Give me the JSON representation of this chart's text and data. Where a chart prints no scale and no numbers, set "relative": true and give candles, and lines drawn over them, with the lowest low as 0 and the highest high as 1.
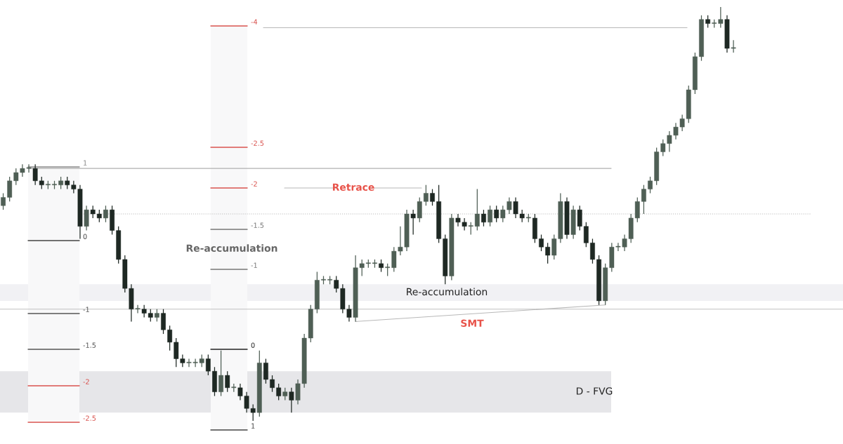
{
  "chart_data": {
    "type": "candlestick",
    "relative": true,
    "categories": [
      null,
      null,
      null,
      null,
      null,
      null,
      null,
      null,
      null,
      null,
      null,
      null,
      null,
      null,
      null,
      null,
      null,
      null,
      null,
      null,
      null,
      null,
      null,
      null,
      null,
      null,
      null,
      null,
      null,
      null,
      null,
      null,
      null,
      null,
      null,
      null,
      null,
      null,
      null,
      null,
      null,
      null,
      null,
      null,
      null,
      null,
      null,
      null,
      null,
      null,
      null,
      null,
      null,
      null,
      null,
      null,
      null,
      null,
      null,
      null,
      null,
      null,
      null,
      null,
      null,
      null,
      null,
      null,
      null,
      null,
      null,
      null,
      null,
      null,
      null,
      null,
      null,
      null,
      null,
      null,
      null,
      null,
      null,
      null,
      null,
      null,
      null,
      null,
      null,
      null,
      null,
      null,
      null,
      null,
      null,
      null,
      null,
      null,
      null,
      null,
      null,
      null,
      null,
      null,
      null,
      null,
      null,
      null,
      null,
      null,
      null,
      null,
      null,
      null,
      null
    ],
    "ohlc": [
      [
        0.52,
        0.55,
        0.51,
        0.54
      ],
      [
        0.54,
        0.59,
        0.53,
        0.58
      ],
      [
        0.58,
        0.61,
        0.57,
        0.6
      ],
      [
        0.6,
        0.62,
        0.59,
        0.61
      ],
      [
        0.61,
        0.62,
        0.6,
        0.61
      ],
      [
        0.61,
        0.62,
        0.57,
        0.58
      ],
      [
        0.58,
        0.59,
        0.56,
        0.57
      ],
      [
        0.57,
        0.58,
        0.56,
        0.57
      ],
      [
        0.57,
        0.58,
        0.56,
        0.57
      ],
      [
        0.57,
        0.59,
        0.56,
        0.58
      ],
      [
        0.58,
        0.59,
        0.56,
        0.57
      ],
      [
        0.57,
        0.58,
        0.55,
        0.56
      ],
      [
        0.56,
        0.57,
        0.44,
        0.47
      ],
      [
        0.47,
        0.52,
        0.46,
        0.51
      ],
      [
        0.51,
        0.52,
        0.49,
        0.5
      ],
      [
        0.5,
        0.51,
        0.48,
        0.49
      ],
      [
        0.49,
        0.52,
        0.48,
        0.51
      ],
      [
        0.51,
        0.52,
        0.45,
        0.46
      ],
      [
        0.46,
        0.47,
        0.38,
        0.39
      ],
      [
        0.39,
        0.4,
        0.31,
        0.32
      ],
      [
        0.32,
        0.33,
        0.24,
        0.27
      ],
      [
        0.27,
        0.28,
        0.26,
        0.27
      ],
      [
        0.27,
        0.28,
        0.25,
        0.26
      ],
      [
        0.26,
        0.27,
        0.24,
        0.25
      ],
      [
        0.25,
        0.27,
        0.24,
        0.26
      ],
      [
        0.26,
        0.27,
        0.21,
        0.22
      ],
      [
        0.22,
        0.23,
        0.17,
        0.19
      ],
      [
        0.19,
        0.2,
        0.13,
        0.15
      ],
      [
        0.15,
        0.16,
        0.13,
        0.14
      ],
      [
        0.14,
        0.15,
        0.13,
        0.14
      ],
      [
        0.14,
        0.15,
        0.13,
        0.14
      ],
      [
        0.14,
        0.16,
        0.13,
        0.15
      ],
      [
        0.15,
        0.16,
        0.11,
        0.12
      ],
      [
        0.12,
        0.13,
        0.06,
        0.07
      ],
      [
        0.07,
        0.17,
        0.06,
        0.11
      ],
      [
        0.11,
        0.12,
        0.07,
        0.08
      ],
      [
        0.08,
        0.09,
        0.07,
        0.08
      ],
      [
        0.08,
        0.09,
        0.05,
        0.06
      ],
      [
        0.06,
        0.07,
        0.02,
        0.03
      ],
      [
        0.03,
        0.04,
        0.0,
        0.02
      ],
      [
        0.02,
        0.17,
        0.01,
        0.14
      ],
      [
        0.14,
        0.15,
        0.09,
        0.1
      ],
      [
        0.1,
        0.11,
        0.07,
        0.08
      ],
      [
        0.08,
        0.09,
        0.05,
        0.06
      ],
      [
        0.06,
        0.08,
        0.05,
        0.07
      ],
      [
        0.07,
        0.08,
        0.02,
        0.05
      ],
      [
        0.05,
        0.1,
        0.04,
        0.09
      ],
      [
        0.09,
        0.21,
        0.08,
        0.2
      ],
      [
        0.2,
        0.28,
        0.19,
        0.27
      ],
      [
        0.27,
        0.36,
        0.26,
        0.34
      ],
      [
        0.34,
        0.35,
        0.33,
        0.34
      ],
      [
        0.34,
        0.35,
        0.33,
        0.34
      ],
      [
        0.34,
        0.35,
        0.31,
        0.32
      ],
      [
        0.32,
        0.33,
        0.26,
        0.27
      ],
      [
        0.27,
        0.28,
        0.24,
        0.25
      ],
      [
        0.25,
        0.4,
        0.24,
        0.37
      ],
      [
        0.37,
        0.39,
        0.35,
        0.38
      ],
      [
        0.38,
        0.39,
        0.37,
        0.38
      ],
      [
        0.38,
        0.39,
        0.37,
        0.38
      ],
      [
        0.38,
        0.39,
        0.36,
        0.37
      ],
      [
        0.37,
        0.38,
        0.35,
        0.37
      ],
      [
        0.37,
        0.42,
        0.36,
        0.41
      ],
      [
        0.41,
        0.47,
        0.4,
        0.42
      ],
      [
        0.42,
        0.51,
        0.41,
        0.5
      ],
      [
        0.5,
        0.51,
        0.45,
        0.49
      ],
      [
        0.49,
        0.54,
        0.48,
        0.53
      ],
      [
        0.53,
        0.57,
        0.52,
        0.55
      ],
      [
        0.55,
        0.56,
        0.52,
        0.53
      ],
      [
        0.53,
        0.57,
        0.43,
        0.44
      ],
      [
        0.44,
        0.45,
        0.33,
        0.35
      ],
      [
        0.35,
        0.5,
        0.34,
        0.49
      ],
      [
        0.49,
        0.5,
        0.47,
        0.48
      ],
      [
        0.48,
        0.49,
        0.46,
        0.47
      ],
      [
        0.47,
        0.48,
        0.45,
        0.47
      ],
      [
        0.47,
        0.56,
        0.46,
        0.5
      ],
      [
        0.5,
        0.51,
        0.47,
        0.48
      ],
      [
        0.48,
        0.52,
        0.47,
        0.51
      ],
      [
        0.51,
        0.52,
        0.48,
        0.49
      ],
      [
        0.49,
        0.52,
        0.48,
        0.51
      ],
      [
        0.51,
        0.54,
        0.5,
        0.53
      ],
      [
        0.53,
        0.54,
        0.49,
        0.5
      ],
      [
        0.5,
        0.51,
        0.48,
        0.49
      ],
      [
        0.49,
        0.5,
        0.48,
        0.49
      ],
      [
        0.49,
        0.5,
        0.43,
        0.44
      ],
      [
        0.44,
        0.45,
        0.41,
        0.42
      ],
      [
        0.42,
        0.43,
        0.38,
        0.4
      ],
      [
        0.4,
        0.45,
        0.39,
        0.44
      ],
      [
        0.44,
        0.55,
        0.43,
        0.53
      ],
      [
        0.53,
        0.54,
        0.44,
        0.45
      ],
      [
        0.45,
        0.52,
        0.44,
        0.51
      ],
      [
        0.51,
        0.52,
        0.46,
        0.47
      ],
      [
        0.47,
        0.48,
        0.42,
        0.43
      ],
      [
        0.43,
        0.44,
        0.38,
        0.39
      ],
      [
        0.39,
        0.4,
        0.28,
        0.29
      ],
      [
        0.29,
        0.38,
        0.28,
        0.37
      ],
      [
        0.37,
        0.43,
        0.36,
        0.42
      ],
      [
        0.42,
        0.43,
        0.41,
        0.42
      ],
      [
        0.42,
        0.45,
        0.41,
        0.44
      ],
      [
        0.44,
        0.5,
        0.43,
        0.49
      ],
      [
        0.49,
        0.54,
        0.48,
        0.53
      ],
      [
        0.53,
        0.57,
        0.5,
        0.56
      ],
      [
        0.56,
        0.59,
        0.55,
        0.58
      ],
      [
        0.58,
        0.66,
        0.57,
        0.65
      ],
      [
        0.65,
        0.68,
        0.64,
        0.67
      ],
      [
        0.67,
        0.7,
        0.65,
        0.69
      ],
      [
        0.69,
        0.72,
        0.68,
        0.71
      ],
      [
        0.71,
        0.74,
        0.7,
        0.73
      ],
      [
        0.73,
        0.81,
        0.72,
        0.8
      ],
      [
        0.8,
        0.89,
        0.79,
        0.88
      ],
      [
        0.88,
        0.98,
        0.87,
        0.97
      ],
      [
        0.97,
        0.98,
        0.95,
        0.96
      ],
      [
        0.96,
        0.97,
        0.95,
        0.96
      ],
      [
        0.96,
        1.0,
        0.95,
        0.97
      ],
      [
        0.97,
        0.98,
        0.89,
        0.9
      ],
      [
        0.9,
        0.92,
        0.89,
        0.9
      ]
    ],
    "series": [
      {
        "type": "line",
        "color": "#b8b8b8",
        "values": [
          null,
          null,
          null,
          null,
          null,
          null,
          null,
          null,
          null,
          null,
          null,
          null,
          null,
          null,
          null,
          null,
          null,
          null,
          null,
          null,
          null,
          null,
          null,
          null,
          null,
          null,
          null,
          null,
          null,
          null,
          null,
          null,
          null,
          null,
          null,
          null,
          null,
          null,
          null,
          null,
          null,
          null,
          null,
          null,
          null,
          null,
          null,
          null,
          null,
          null,
          null,
          null,
          null,
          null,
          null,
          0.24,
          null,
          null,
          null,
          null,
          null,
          null,
          null,
          null,
          null,
          null,
          null,
          null,
          null,
          null,
          null,
          null,
          null,
          null,
          null,
          null,
          null,
          null,
          null,
          null,
          null,
          null,
          null,
          null,
          null,
          null,
          null,
          null,
          null,
          null,
          null,
          null,
          null,
          null,
          0.28,
          null,
          null,
          null,
          null,
          null,
          null,
          null,
          null,
          null,
          null,
          null,
          null,
          null,
          null,
          null,
          null,
          null,
          null,
          null,
          null
        ]
      }
    ],
    "ref_lines": [
      {
        "axis": "y",
        "value": 0.61,
        "color": "#b0b0b0",
        "line_style": "solid"
      },
      {
        "axis": "y",
        "value": 0.27,
        "color": "#c0c0c0",
        "line_style": "solid"
      },
      {
        "axis": "y",
        "value": 0.5,
        "color": "#b8b8b8",
        "line_style": "dotted"
      },
      {
        "axis": "y",
        "value": 0.95,
        "color": "#b8b8b8",
        "line_style": "solid"
      }
    ],
    "bands": [
      {
        "axis": "y",
        "from": 0.02,
        "to": 0.12,
        "label": "D - FVG",
        "color": "#e6e6e9"
      },
      {
        "axis": "y",
        "from": 0.29,
        "to": 0.33,
        "label": "Re-accumulation",
        "color": "#f1f1f4"
      }
    ],
    "annotations": [
      "1",
      "0",
      "-1",
      "-1.5",
      "-2",
      "-2.5",
      "-4",
      "-2.5",
      "-2",
      "-1.5",
      "-1",
      "0",
      "1",
      "Retrace",
      "Re-accumulation",
      "SMT"
    ]
  }
}
